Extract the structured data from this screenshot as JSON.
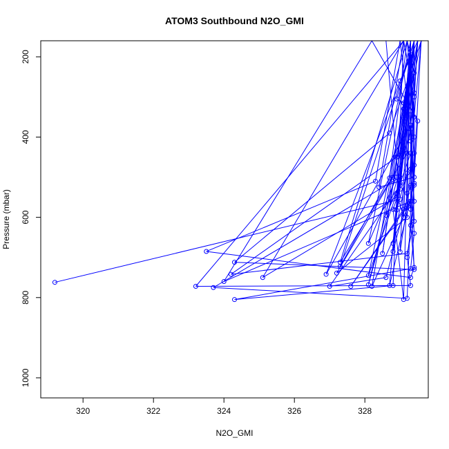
{
  "chart_data": {
    "type": "line",
    "title": "ATOM3 Southbound N2O_GMI",
    "xlabel": "N2O_GMI",
    "ylabel": "Pressure (mbar)",
    "xlim": [
      318.8,
      329.8
    ],
    "ylim": [
      1050,
      160
    ],
    "y_reversed": true,
    "x_ticks": [
      320,
      322,
      324,
      326,
      328
    ],
    "y_ticks": [
      200,
      400,
      600,
      800,
      1000
    ],
    "line_color": "#0000ff",
    "marker": "open-circle",
    "grid": false,
    "series": [
      {
        "points": [
          [
            319.2,
            762
          ],
          [
            329.0,
            555
          ],
          [
            328.6,
            160
          ],
          [
            329.2,
            160
          ],
          [
            329.4,
            240
          ],
          [
            329.3,
            380
          ],
          [
            329.4,
            520
          ],
          [
            329.3,
            620
          ],
          [
            329.4,
            725
          ],
          [
            329.3,
            750
          ],
          [
            323.5,
            685
          ],
          [
            328.3,
            510
          ],
          [
            329.0,
            160
          ],
          [
            329.2,
            305
          ],
          [
            329.3,
            410
          ],
          [
            329.4,
            560
          ],
          [
            329.2,
            700
          ],
          [
            329.3,
            770
          ],
          [
            323.2,
            772
          ],
          [
            329.1,
            160
          ],
          [
            329.4,
            300
          ],
          [
            329.3,
            480
          ],
          [
            329.4,
            640
          ],
          [
            329.3,
            728
          ],
          [
            324.3,
            805
          ],
          [
            328.8,
            770
          ],
          [
            329.1,
            160
          ],
          [
            329.3,
            250
          ],
          [
            329.4,
            440
          ],
          [
            329.3,
            580
          ],
          [
            329.2,
            802
          ],
          [
            323.7,
            775
          ],
          [
            329.0,
            500
          ],
          [
            329.4,
            160
          ],
          [
            329.3,
            335
          ],
          [
            329.4,
            610
          ],
          [
            329.2,
            690
          ],
          [
            324.2,
            742
          ],
          [
            328.9,
            450
          ],
          [
            329.5,
            160
          ],
          [
            329.4,
            290
          ],
          [
            329.3,
            525
          ],
          [
            329.4,
            730
          ],
          [
            324.3,
            712
          ],
          [
            328.7,
            390
          ],
          [
            329.6,
            160
          ],
          [
            329.4,
            470
          ],
          [
            329.3,
            560
          ],
          [
            324.0,
            760
          ],
          [
            328.2,
            160
          ],
          [
            329.5,
            360
          ],
          [
            329.4,
            500
          ],
          [
            328.4,
            525
          ],
          [
            329.1,
            160
          ],
          [
            325.1,
            750
          ],
          [
            328.9,
            550
          ],
          [
            329.3,
            195
          ],
          [
            329.4,
            400
          ],
          [
            329.3,
            520
          ],
          [
            328.6,
            750
          ],
          [
            327.0,
            772
          ],
          [
            329.0,
            520
          ],
          [
            329.5,
            160
          ],
          [
            329.4,
            300
          ],
          [
            329.2,
            440
          ],
          [
            327.3,
            712
          ],
          [
            329.2,
            160
          ],
          [
            329.4,
            350
          ],
          [
            328.1,
            768
          ],
          [
            329.0,
            445
          ],
          [
            329.4,
            160
          ],
          [
            328.5,
            690
          ],
          [
            329.2,
            290
          ],
          [
            329.3,
            370
          ],
          [
            326.9,
            742
          ],
          [
            329.0,
            260
          ],
          [
            329.5,
            160
          ],
          [
            329.2,
            600
          ],
          [
            327.2,
            739
          ],
          [
            328.8,
            500
          ],
          [
            329.6,
            160
          ],
          [
            329.3,
            440
          ],
          [
            328.1,
            745
          ],
          [
            329.1,
            330
          ],
          [
            329.4,
            160
          ],
          [
            328.9,
            500
          ],
          [
            328.1,
            665
          ],
          [
            329.3,
            160
          ],
          [
            328.8,
            665
          ],
          [
            329.2,
            490
          ],
          [
            328.9,
            582
          ],
          [
            329.4,
            160
          ],
          [
            328.2,
            772
          ],
          [
            329.3,
            560
          ],
          [
            327.6,
            772
          ],
          [
            329.1,
            580
          ],
          [
            329.3,
            200
          ],
          [
            328.8,
            685
          ],
          [
            329.4,
            160
          ],
          [
            329.0,
            515
          ],
          [
            328.6,
            595
          ],
          [
            329.4,
            160
          ],
          [
            327.3,
            722
          ],
          [
            328.7,
            502
          ],
          [
            329.2,
            160
          ],
          [
            329.4,
            240
          ],
          [
            329.1,
            315
          ],
          [
            328.9,
            305
          ],
          [
            329.4,
            160
          ],
          [
            329.0,
            530
          ],
          [
            328.8,
            580
          ],
          [
            329.1,
            805
          ],
          [
            329.3,
            160
          ],
          [
            329.2,
            570
          ],
          [
            329.0,
            686
          ],
          [
            329.3,
            160
          ],
          [
            329.2,
            540
          ],
          [
            329.3,
            580
          ],
          [
            329.3,
            160
          ],
          [
            329.1,
            600
          ],
          [
            328.9,
            540
          ],
          [
            329.4,
            160
          ],
          [
            329.4,
            515
          ],
          [
            328.7,
            770
          ],
          [
            329.3,
            160
          ]
        ]
      }
    ]
  }
}
